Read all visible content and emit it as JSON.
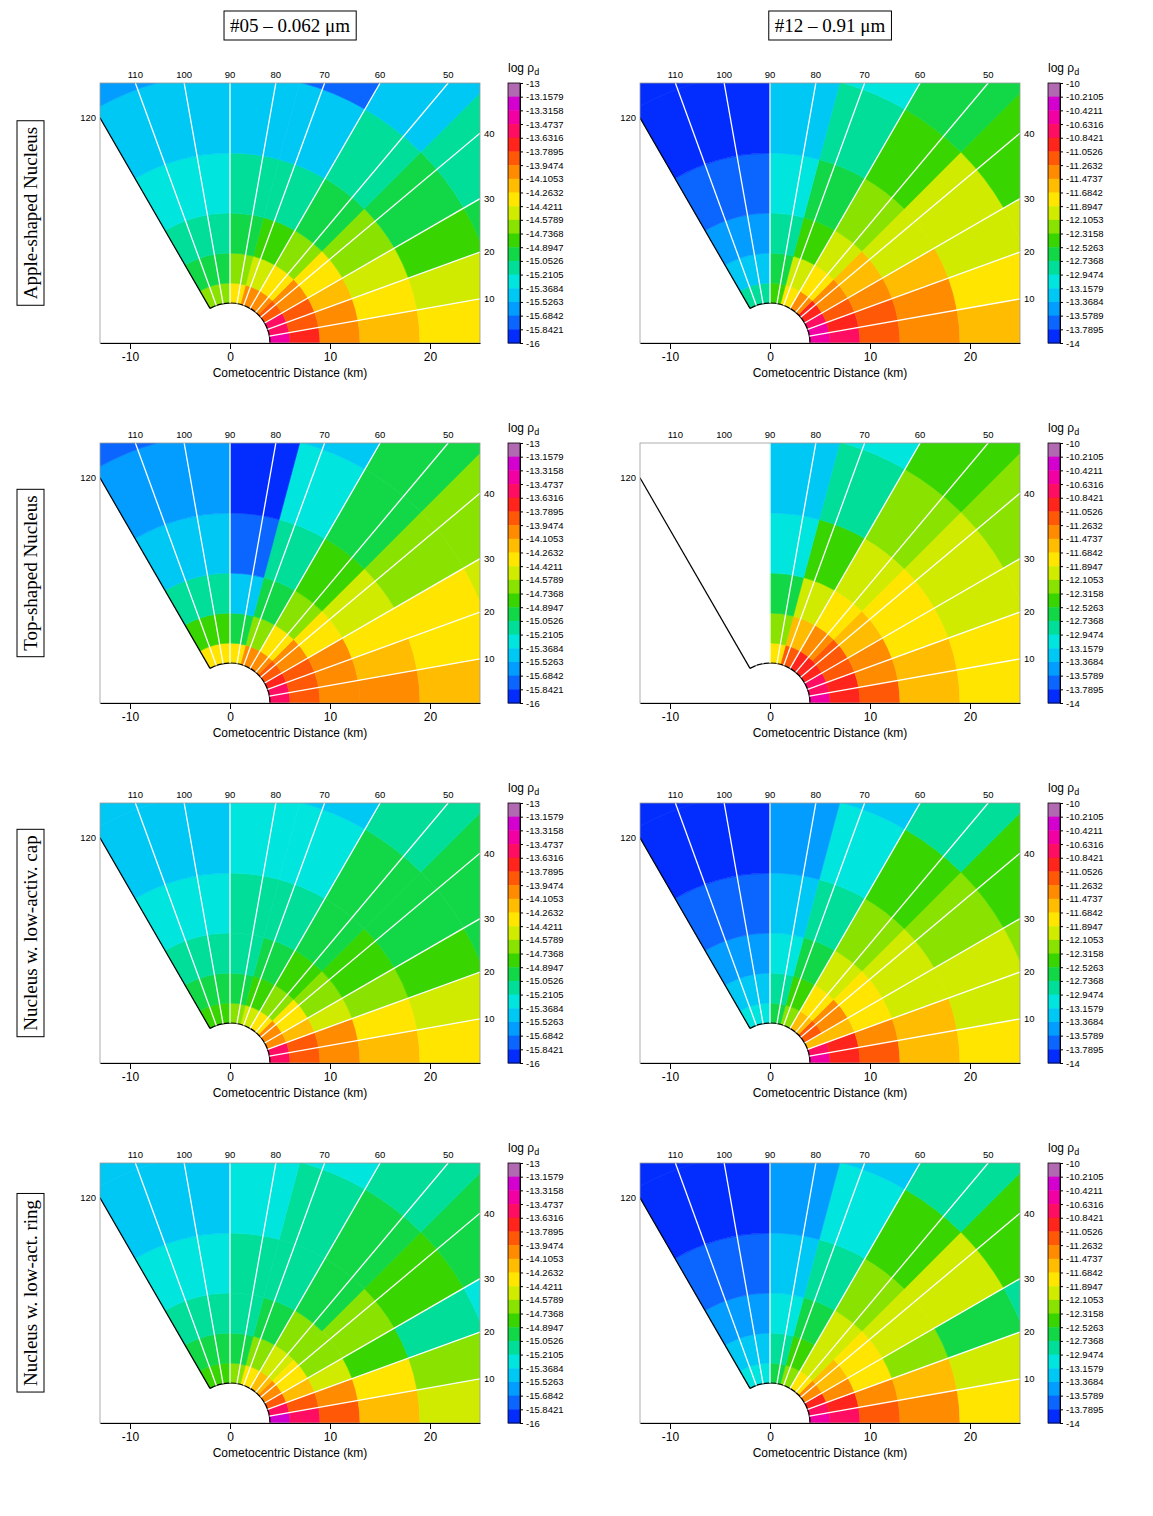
{
  "figure": {
    "columns": [
      "#05 – 0.062 μm",
      "#12 – 0.91 μm"
    ],
    "rows": [
      "Apple-shaped Nucleus",
      "Top-shaped Nucleus",
      "Nucleus w. low-activ. cap",
      "Nucleus w. low-act. ring"
    ]
  },
  "chart_data": [
    {
      "type": "heatmap",
      "xlabel": "Cometocentric Distance (km)",
      "xlim": [
        -13,
        25
      ],
      "xticks": [
        -10,
        0,
        10,
        20
      ],
      "ylim": [
        0,
        26
      ],
      "tick_labels": "x",
      "angle_ticks": [
        10,
        20,
        30,
        40,
        50,
        60,
        70,
        80,
        90,
        100,
        110,
        120
      ],
      "radius_edges": [
        4,
        6,
        9,
        13,
        19,
        27,
        37
      ],
      "angle_edges": [
        0,
        10,
        20,
        30,
        45,
        60,
        75,
        90,
        120
      ],
      "cells": [
        [
          -13.4,
          -13.5,
          -13.6,
          -13.8,
          -14.0,
          -14.1,
          -14.3,
          -14.6
        ],
        [
          -13.7,
          -13.8,
          -13.9,
          -14.1,
          -14.3,
          -14.5,
          -14.7,
          -14.9
        ],
        [
          -14.0,
          -14.1,
          -14.2,
          -14.4,
          -14.6,
          -14.8,
          -15.0,
          -15.1
        ],
        [
          -14.2,
          -14.3,
          -14.5,
          -14.7,
          -14.9,
          -15.1,
          -15.2,
          -15.3
        ],
        [
          -14.4,
          -14.5,
          -14.8,
          -15.0,
          -15.1,
          -15.4,
          -15.5,
          -15.5
        ],
        [
          -14.6,
          -14.8,
          -15.0,
          -15.2,
          -15.4,
          -15.7,
          -15.7,
          -15.6
        ]
      ],
      "colorbar": {
        "title": "log ρ",
        "subscript": "d",
        "range": [
          -16,
          -13
        ],
        "ticks": [
          -13,
          -13.1579,
          -13.3158,
          -13.4737,
          -13.6316,
          -13.7895,
          -13.9474,
          -14.1053,
          -14.2632,
          -14.4211,
          -14.5789,
          -14.7368,
          -14.8947,
          -15.0526,
          -15.2105,
          -15.3684,
          -15.5263,
          -15.6842,
          -15.8421,
          -16
        ]
      }
    },
    {
      "type": "heatmap",
      "xlabel": "Cometocentric Distance (km)",
      "xlim": [
        -13,
        25
      ],
      "xticks": [
        -10,
        0,
        10,
        20
      ],
      "ylim": [
        0,
        26
      ],
      "tick_labels": "x",
      "angle_ticks": [
        10,
        20,
        30,
        40,
        50,
        60,
        70,
        80,
        90,
        100,
        110,
        120
      ],
      "radius_edges": [
        4,
        6,
        9,
        13,
        19,
        27,
        37
      ],
      "angle_edges": [
        0,
        10,
        20,
        30,
        45,
        60,
        75,
        90,
        120
      ],
      "cells": [
        [
          -10.5,
          -10.6,
          -10.8,
          -11.0,
          -11.4,
          -11.8,
          -12.4,
          -12.9
        ],
        [
          -10.8,
          -10.9,
          -11.1,
          -11.3,
          -11.7,
          -12.1,
          -12.7,
          -13.2
        ],
        [
          -11.1,
          -11.2,
          -11.4,
          -11.6,
          -11.9,
          -12.4,
          -12.9,
          -13.4
        ],
        [
          -11.3,
          -11.4,
          -11.6,
          -11.9,
          -12.2,
          -12.6,
          -13.1,
          -13.6
        ],
        [
          -11.5,
          -11.7,
          -11.9,
          -12.1,
          -12.4,
          -12.8,
          -13.3,
          -13.8
        ],
        [
          -11.8,
          -11.9,
          -12.1,
          -12.4,
          -12.7,
          -13.0,
          -13.5,
          -13.9
        ]
      ],
      "colorbar": {
        "title": "log ρ",
        "subscript": "d",
        "range": [
          -14,
          -10
        ],
        "ticks": [
          -10,
          -10.2105,
          -10.4211,
          -10.6316,
          -10.8421,
          -11.0526,
          -11.2632,
          -11.4737,
          -11.6842,
          -11.8947,
          -12.1053,
          -12.3158,
          -12.5263,
          -12.7368,
          -12.9474,
          -13.1579,
          -13.3684,
          -13.5789,
          -13.7895,
          -14
        ]
      }
    },
    {
      "type": "heatmap",
      "xlabel": "Cometocentric Distance (km)",
      "xlim": [
        -13,
        25
      ],
      "xticks": [
        -10,
        0,
        10,
        20
      ],
      "ylim": [
        0,
        26
      ],
      "tick_labels": "x",
      "angle_ticks": [
        10,
        20,
        30,
        40,
        50,
        60,
        70,
        80,
        90,
        100,
        110,
        120
      ],
      "radius_edges": [
        4,
        6,
        9,
        13,
        19,
        27,
        37
      ],
      "angle_edges": [
        0,
        10,
        20,
        30,
        45,
        60,
        75,
        90,
        120
      ],
      "cells": [
        [
          -13.5,
          -13.6,
          -13.7,
          -13.9,
          -14.0,
          -14.1,
          -14.3,
          -14.4
        ],
        [
          -13.8,
          -13.8,
          -13.9,
          -14.1,
          -14.3,
          -14.6,
          -15.0,
          -14.8
        ],
        [
          -14.0,
          -14.0,
          -14.1,
          -14.3,
          -14.6,
          -15.0,
          -15.5,
          -15.2
        ],
        [
          -14.1,
          -14.2,
          -14.3,
          -14.5,
          -14.8,
          -15.2,
          -15.8,
          -15.4
        ],
        [
          -14.2,
          -14.3,
          -14.4,
          -14.6,
          -14.9,
          -15.3,
          -16.0,
          -15.6
        ],
        [
          -14.3,
          -14.4,
          -14.5,
          -14.7,
          -15.0,
          -15.4,
          -16.0,
          -15.7
        ]
      ],
      "colorbar": {
        "title": "log ρ",
        "subscript": "d",
        "range": [
          -16,
          -13
        ],
        "ticks": [
          -13,
          -13.1579,
          -13.3158,
          -13.4737,
          -13.6316,
          -13.7895,
          -13.9474,
          -14.1053,
          -14.2632,
          -14.4211,
          -14.5789,
          -14.7368,
          -14.8947,
          -15.0526,
          -15.2105,
          -15.3684,
          -15.5263,
          -15.6842,
          -15.8421,
          -16
        ]
      }
    },
    {
      "type": "heatmap",
      "xlabel": "Cometocentric Distance (km)",
      "xlim": [
        -13,
        25
      ],
      "xticks": [
        -10,
        0,
        10,
        20
      ],
      "ylim": [
        0,
        26
      ],
      "tick_labels": "x",
      "angle_ticks": [
        10,
        20,
        30,
        40,
        50,
        60,
        70,
        80,
        90,
        100,
        110,
        120
      ],
      "radius_edges": [
        4,
        6,
        9,
        13,
        19,
        27,
        37
      ],
      "angle_edges": [
        0,
        10,
        20,
        30,
        45,
        60,
        75,
        90,
        120
      ],
      "cells": [
        [
          -10.6,
          -10.7,
          -10.8,
          -10.9,
          -11.0,
          -11.2,
          -11.8,
          null
        ],
        [
          -10.9,
          -11.0,
          -11.1,
          -11.2,
          -11.3,
          -11.6,
          -12.2,
          null
        ],
        [
          -11.2,
          -11.3,
          -11.4,
          -11.5,
          -11.7,
          -12.0,
          -12.6,
          null
        ],
        [
          -11.5,
          -11.6,
          -11.7,
          -11.8,
          -12.0,
          -12.4,
          -13.0,
          null
        ],
        [
          -11.7,
          -11.8,
          -11.9,
          -12.0,
          -12.3,
          -12.8,
          -13.3,
          null
        ],
        [
          -11.9,
          -12.0,
          -12.1,
          -12.2,
          -12.5,
          -13.0,
          -13.5,
          null
        ]
      ],
      "colorbar": {
        "title": "log ρ",
        "subscript": "d",
        "range": [
          -14,
          -10
        ],
        "ticks": [
          -10,
          -10.2105,
          -10.4211,
          -10.6316,
          -10.8421,
          -11.0526,
          -11.2632,
          -11.4737,
          -11.6842,
          -11.8947,
          -12.1053,
          -12.3158,
          -12.5263,
          -12.7368,
          -12.9474,
          -13.1579,
          -13.3684,
          -13.5789,
          -13.7895,
          -14
        ]
      }
    },
    {
      "type": "heatmap",
      "xlabel": "Cometocentric Distance (km)",
      "xlim": [
        -13,
        25
      ],
      "xticks": [
        -10,
        0,
        10,
        20
      ],
      "ylim": [
        0,
        26
      ],
      "tick_labels": "x",
      "angle_ticks": [
        10,
        20,
        30,
        40,
        50,
        60,
        70,
        80,
        90,
        100,
        110,
        120
      ],
      "radius_edges": [
        4,
        6,
        9,
        13,
        19,
        27,
        37
      ],
      "angle_edges": [
        0,
        10,
        20,
        30,
        45,
        60,
        75,
        90,
        120
      ],
      "cells": [
        [
          -13.5,
          -13.6,
          -14.0,
          -14.1,
          -14.3,
          -14.5,
          -14.6,
          -14.8
        ],
        [
          -13.8,
          -13.9,
          -14.2,
          -14.4,
          -14.6,
          -14.8,
          -14.9,
          -15.0
        ],
        [
          -14.0,
          -14.1,
          -14.5,
          -14.6,
          -14.8,
          -15.0,
          -15.1,
          -15.2
        ],
        [
          -14.2,
          -14.3,
          -14.7,
          -14.8,
          -14.9,
          -15.1,
          -15.2,
          -15.3
        ],
        [
          -14.4,
          -14.5,
          -14.8,
          -14.9,
          -15.0,
          -15.3,
          -15.3,
          -15.4
        ],
        [
          -14.6,
          -14.6,
          -14.9,
          -15.0,
          -15.1,
          -15.4,
          -15.4,
          -15.5
        ]
      ],
      "colorbar": {
        "title": "log ρ",
        "subscript": "d",
        "range": [
          -16,
          -13
        ],
        "ticks": [
          -13,
          -13.1579,
          -13.3158,
          -13.4737,
          -13.6316,
          -13.7895,
          -13.9474,
          -14.1053,
          -14.2632,
          -14.4211,
          -14.5789,
          -14.7368,
          -14.8947,
          -15.0526,
          -15.2105,
          -15.3684,
          -15.5263,
          -15.6842,
          -15.8421,
          -16
        ]
      }
    },
    {
      "type": "heatmap",
      "xlabel": "Cometocentric Distance (km)",
      "xlim": [
        -13,
        25
      ],
      "xticks": [
        -10,
        0,
        10,
        20
      ],
      "ylim": [
        0,
        26
      ],
      "tick_labels": "x",
      "angle_ticks": [
        10,
        20,
        30,
        40,
        50,
        60,
        70,
        80,
        90,
        100,
        110,
        120
      ],
      "radius_edges": [
        4,
        6,
        9,
        13,
        19,
        27,
        37
      ],
      "angle_edges": [
        0,
        10,
        20,
        30,
        45,
        60,
        75,
        90,
        120
      ],
      "cells": [
        [
          -10.6,
          -10.7,
          -11.5,
          -11.2,
          -11.6,
          -12.2,
          -12.6,
          -13.0
        ],
        [
          -10.9,
          -11.0,
          -11.6,
          -11.4,
          -11.8,
          -12.4,
          -12.8,
          -13.2
        ],
        [
          -11.2,
          -11.3,
          -11.7,
          -11.7,
          -12.0,
          -12.6,
          -13.0,
          -13.4
        ],
        [
          -11.5,
          -11.6,
          -11.9,
          -12.0,
          -12.3,
          -12.8,
          -13.2,
          -13.6
        ],
        [
          -11.8,
          -11.9,
          -12.1,
          -12.2,
          -12.5,
          -13.0,
          -13.4,
          -13.8
        ],
        [
          -12.0,
          -12.1,
          -12.3,
          -12.5,
          -12.8,
          -13.2,
          -13.6,
          -13.9
        ]
      ],
      "colorbar": {
        "title": "log ρ",
        "subscript": "d",
        "range": [
          -14,
          -10
        ],
        "ticks": [
          -10,
          -10.2105,
          -10.4211,
          -10.6316,
          -10.8421,
          -11.0526,
          -11.2632,
          -11.4737,
          -11.6842,
          -11.8947,
          -12.1053,
          -12.3158,
          -12.5263,
          -12.7368,
          -12.9474,
          -13.1579,
          -13.3684,
          -13.5789,
          -13.7895,
          -14
        ]
      }
    },
    {
      "type": "heatmap",
      "xlabel": "Cometocentric Distance (km)",
      "xlim": [
        -13,
        25
      ],
      "xticks": [
        -10,
        0,
        10,
        20
      ],
      "ylim": [
        0,
        26
      ],
      "tick_labels": "x",
      "angle_ticks": [
        10,
        20,
        30,
        40,
        50,
        60,
        70,
        80,
        90,
        100,
        110,
        120
      ],
      "radius_edges": [
        4,
        6,
        9,
        13,
        19,
        27,
        37
      ],
      "angle_edges": [
        0,
        10,
        20,
        30,
        45,
        60,
        75,
        90,
        120
      ],
      "cells": [
        [
          -13.3,
          -13.5,
          -13.8,
          -14.0,
          -14.2,
          -14.4,
          -14.6,
          -14.8
        ],
        [
          -13.6,
          -13.8,
          -14.2,
          -14.4,
          -14.5,
          -14.7,
          -14.9,
          -15.0
        ],
        [
          -13.9,
          -14.1,
          -14.5,
          -14.6,
          -14.7,
          -14.9,
          -15.1,
          -15.2
        ],
        [
          -14.2,
          -14.4,
          -14.8,
          -14.7,
          -14.9,
          -15.1,
          -15.2,
          -15.3
        ],
        [
          -14.5,
          -14.6,
          -15.1,
          -14.8,
          -15.0,
          -15.2,
          -15.3,
          -15.4
        ],
        [
          -14.7,
          -14.8,
          -15.3,
          -15.0,
          -15.1,
          -15.3,
          -15.4,
          -15.5
        ]
      ],
      "colorbar": {
        "title": "log ρ",
        "subscript": "d",
        "range": [
          -16,
          -13
        ],
        "ticks": [
          -13,
          -13.1579,
          -13.3158,
          -13.4737,
          -13.6316,
          -13.7895,
          -13.9474,
          -14.1053,
          -14.2632,
          -14.4211,
          -14.5789,
          -14.7368,
          -14.8947,
          -15.0526,
          -15.2105,
          -15.3684,
          -15.5263,
          -15.6842,
          -15.8421,
          -16
        ]
      }
    },
    {
      "type": "heatmap",
      "xlabel": "Cometocentric Distance (km)",
      "xlim": [
        -13,
        25
      ],
      "xticks": [
        -10,
        0,
        10,
        20
      ],
      "ylim": [
        0,
        26
      ],
      "tick_labels": "x",
      "angle_ticks": [
        10,
        20,
        30,
        40,
        50,
        60,
        70,
        80,
        90,
        100,
        110,
        120
      ],
      "radius_edges": [
        4,
        6,
        9,
        13,
        19,
        27,
        37
      ],
      "angle_edges": [
        0,
        10,
        20,
        30,
        45,
        60,
        75,
        90,
        120
      ],
      "cells": [
        [
          -10.5,
          -10.7,
          -11.0,
          -11.3,
          -11.7,
          -12.2,
          -12.6,
          -13.0
        ],
        [
          -10.8,
          -11.0,
          -11.4,
          -11.5,
          -11.9,
          -12.4,
          -12.8,
          -13.2
        ],
        [
          -11.1,
          -11.3,
          -11.8,
          -11.7,
          -12.1,
          -12.6,
          -13.0,
          -13.4
        ],
        [
          -11.4,
          -11.6,
          -12.2,
          -11.9,
          -12.3,
          -12.8,
          -13.2,
          -13.6
        ],
        [
          -11.7,
          -11.9,
          -12.6,
          -12.1,
          -12.5,
          -13.0,
          -13.4,
          -13.8
        ],
        [
          -12.0,
          -12.2,
          -12.9,
          -12.4,
          -12.8,
          -13.2,
          -13.6,
          -13.9
        ]
      ],
      "colorbar": {
        "title": "log ρ",
        "subscript": "d",
        "range": [
          -14,
          -10
        ],
        "ticks": [
          -10,
          -10.2105,
          -10.4211,
          -10.6316,
          -10.8421,
          -11.0526,
          -11.2632,
          -11.4737,
          -11.6842,
          -11.8947,
          -12.1053,
          -12.3158,
          -12.5263,
          -12.7368,
          -12.9474,
          -13.1579,
          -13.3684,
          -13.5789,
          -13.7895,
          -14
        ]
      }
    }
  ]
}
